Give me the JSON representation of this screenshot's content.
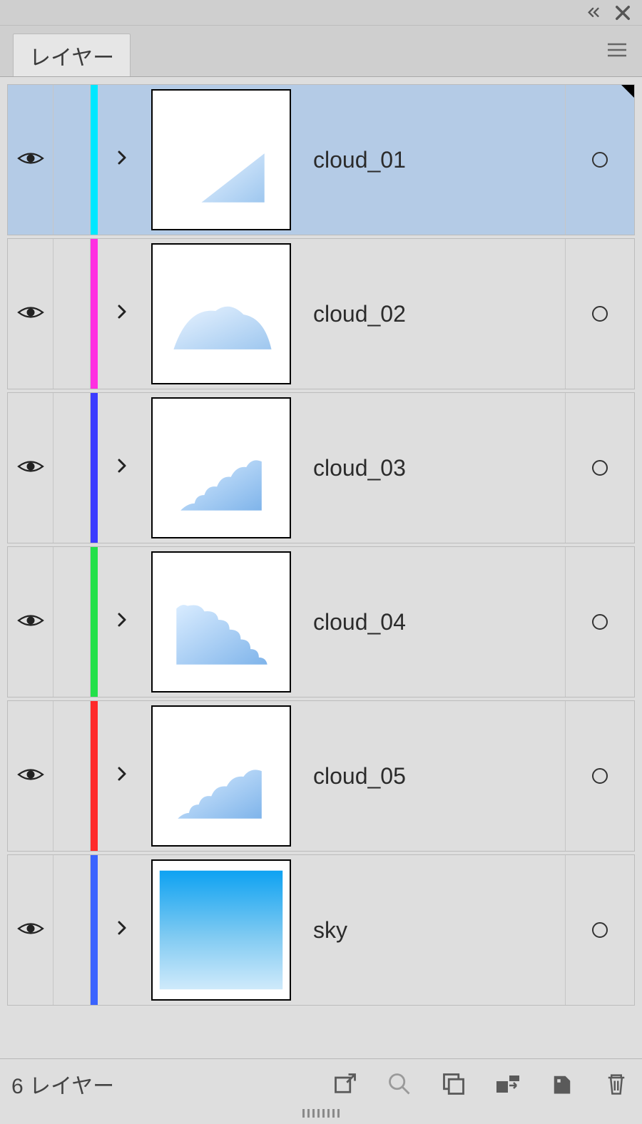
{
  "panel": {
    "tab_title": "レイヤー",
    "footer_count_label": "6 レイヤー"
  },
  "colors": {
    "panel_bg": "#cfcfcf",
    "list_bg": "#dedede",
    "selected_bg": "#b4cbe6",
    "border": "#bcbcbc",
    "thumb_border": "#000000"
  },
  "layers": [
    {
      "name": "cloud_01",
      "stripe_color": "#00e7ff",
      "visible": true,
      "selected": true,
      "expanded": false,
      "thumb_type": "cloud1"
    },
    {
      "name": "cloud_02",
      "stripe_color": "#ff2fe1",
      "visible": true,
      "selected": false,
      "expanded": false,
      "thumb_type": "cloud2"
    },
    {
      "name": "cloud_03",
      "stripe_color": "#3b3bff",
      "visible": true,
      "selected": false,
      "expanded": false,
      "thumb_type": "cloud3"
    },
    {
      "name": "cloud_04",
      "stripe_color": "#23e04a",
      "visible": true,
      "selected": false,
      "expanded": false,
      "thumb_type": "cloud4"
    },
    {
      "name": "cloud_05",
      "stripe_color": "#ff2a2a",
      "visible": true,
      "selected": false,
      "expanded": false,
      "thumb_type": "cloud5"
    },
    {
      "name": "sky",
      "stripe_color": "#3a63ff",
      "visible": true,
      "selected": false,
      "expanded": false,
      "thumb_type": "sky"
    }
  ],
  "footer_buttons": [
    {
      "id": "export",
      "tooltip": "Export"
    },
    {
      "id": "search",
      "tooltip": "Search"
    },
    {
      "id": "new-sublayer",
      "tooltip": "New Sublayer"
    },
    {
      "id": "clip-mask",
      "tooltip": "Clipping Mask"
    },
    {
      "id": "new-layer",
      "tooltip": "New Layer"
    },
    {
      "id": "delete",
      "tooltip": "Delete"
    }
  ]
}
